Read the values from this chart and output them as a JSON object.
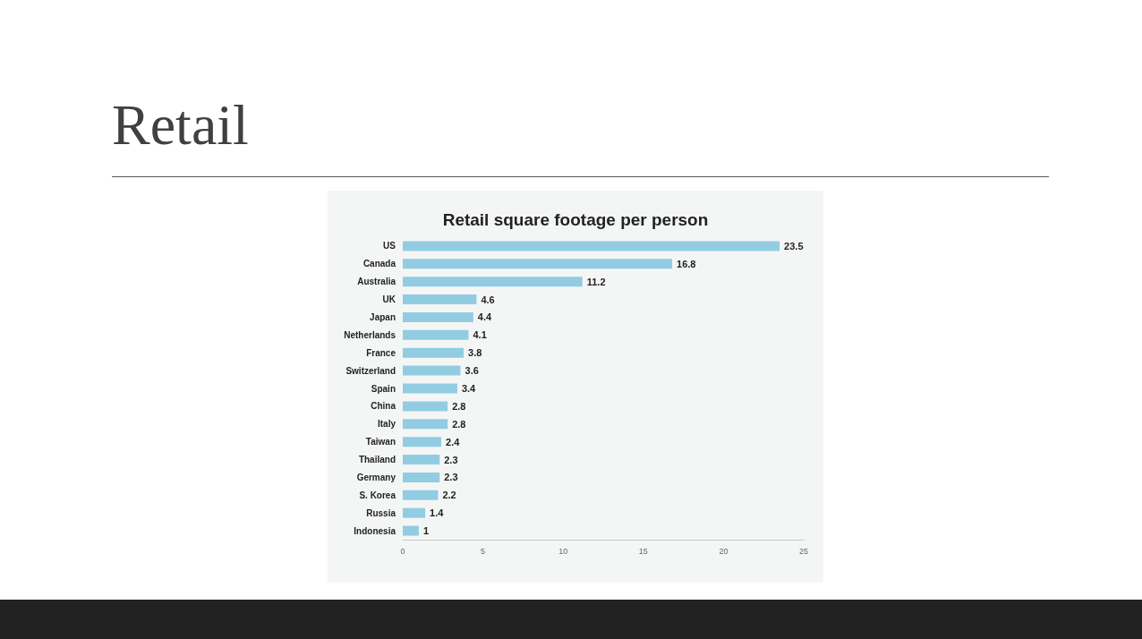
{
  "chart_data": {
    "type": "bar",
    "orientation": "horizontal",
    "title": "Retail",
    "subtitle": "Retail square footage per person",
    "categories": [
      "US",
      "Canada",
      "Australia",
      "UK",
      "Japan",
      "Netherlands",
      "France",
      "Switzerland",
      "Spain",
      "China",
      "Italy",
      "Taiwan",
      "Thailand",
      "Germany",
      "S. Korea",
      "Russia",
      "Indonesia"
    ],
    "values": [
      23.5,
      16.8,
      11.2,
      4.6,
      4.4,
      4.1,
      3.8,
      3.6,
      3.4,
      2.8,
      2.8,
      2.4,
      2.3,
      2.3,
      2.2,
      1.4,
      1
    ],
    "color": "#92cce3",
    "xlim": [
      0,
      25
    ],
    "xticks": [
      0,
      5,
      10,
      15,
      20,
      25
    ],
    "data_labels": true
  }
}
